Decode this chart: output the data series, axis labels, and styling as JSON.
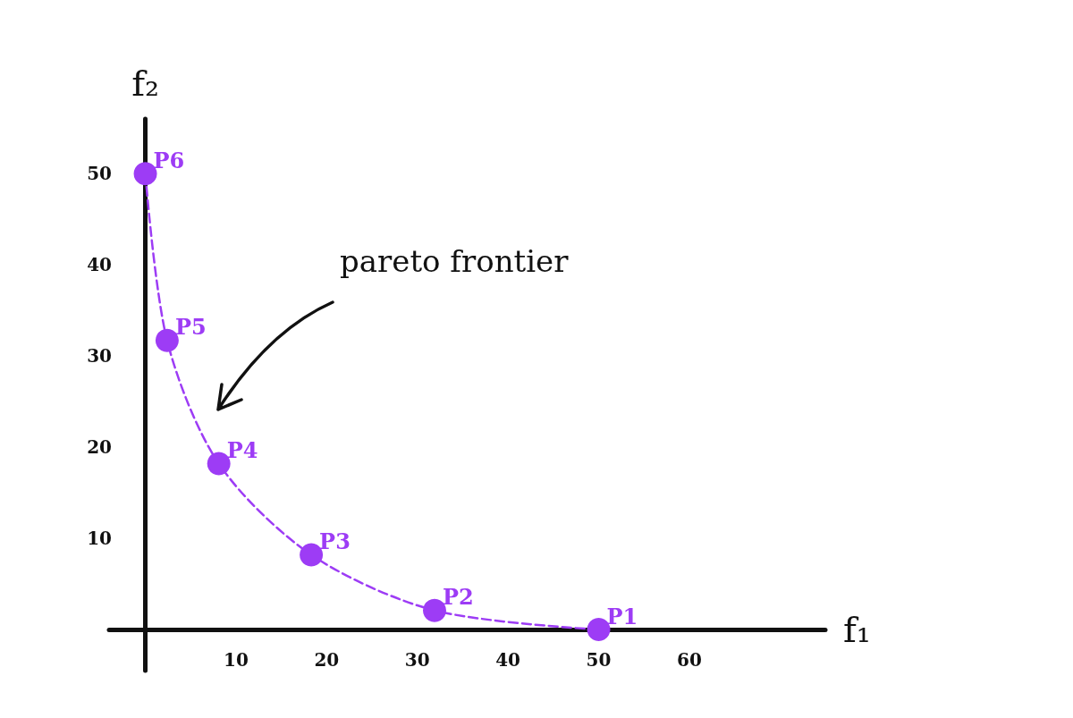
{
  "chart_data": {
    "type": "line",
    "xlabel": "f₁",
    "ylabel": "f₂",
    "xlim": [
      -4,
      75
    ],
    "ylim": [
      -4.5,
      56
    ],
    "xticks": [
      10,
      20,
      30,
      40,
      50,
      60
    ],
    "yticks": [
      10,
      20,
      30,
      40,
      50
    ],
    "series": [
      {
        "color": "#9d3cf5",
        "x": [
          0,
          2.4,
          8.1,
          18.3,
          31.9,
          50
        ],
        "values": [
          50,
          31.7,
          18.2,
          8.2,
          2.1,
          0
        ]
      }
    ],
    "marker": "circle",
    "line_style": "dashed",
    "annotations": [
      "pareto frontier",
      {
        "text": "P6",
        "x": 0,
        "y": 50
      },
      {
        "text": "P5",
        "x": 2.4,
        "y": 31.7
      },
      {
        "text": "P4",
        "x": 8.1,
        "y": 18.2
      },
      {
        "text": "P3",
        "x": 18.3,
        "y": 8.2
      },
      {
        "text": "P2",
        "x": 31.9,
        "y": 2.1
      },
      {
        "text": "P1",
        "x": 50,
        "y": 0
      }
    ]
  }
}
